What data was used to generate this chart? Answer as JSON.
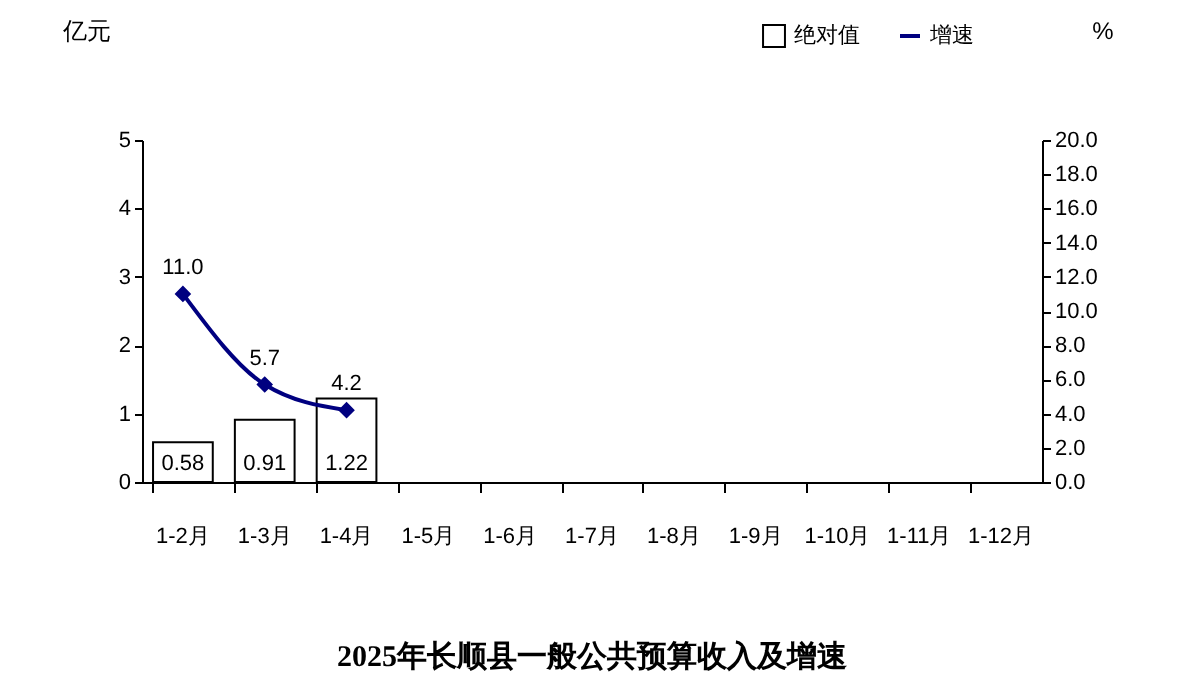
{
  "chart_data": {
    "type": "bar",
    "title": "2025年长顺县一般公共预算收入及增速",
    "categories": [
      "1-2月",
      "1-3月",
      "1-4月",
      "1-5月",
      "1-6月",
      "1-7月",
      "1-8月",
      "1-9月",
      "1-10月",
      "1-11月",
      "1-12月"
    ],
    "series": [
      {
        "name": "绝对值",
        "color": "#ffffff",
        "values": [
          0.58,
          0.91,
          1.22,
          null,
          null,
          null,
          null,
          null,
          null,
          null,
          null
        ]
      },
      {
        "name": "增速",
        "type": "line",
        "axis": "y2",
        "color": "#000080",
        "marker": "diamond",
        "line_style": "solid",
        "values": [
          11.0,
          5.7,
          4.2,
          null,
          null,
          null,
          null,
          null,
          null,
          null,
          null
        ],
        "value_labels": [
          "11.0",
          "5.7",
          "4.2",
          null,
          null,
          null,
          null,
          null,
          null,
          null,
          null
        ]
      }
    ],
    "ylabel": "亿元",
    "y2label": "%",
    "ylim": [
      0,
      5
    ],
    "yticks": [
      0,
      1,
      2,
      3,
      4,
      5
    ],
    "y2lim": [
      0,
      20
    ],
    "y2ticks": [
      {
        "value": 0,
        "label": "0.0"
      },
      {
        "value": 2,
        "label": "2.0"
      },
      {
        "value": 4,
        "label": "4.0"
      },
      {
        "value": 6,
        "label": "6.0"
      },
      {
        "value": 8,
        "label": "8.0"
      },
      {
        "value": 10,
        "label": "10.0"
      },
      {
        "value": 12,
        "label": "12.0"
      },
      {
        "value": 14,
        "label": "14.0"
      },
      {
        "value": 16,
        "label": "16.0"
      },
      {
        "value": 18,
        "label": "18.0"
      },
      {
        "value": 20,
        "label": "20.0"
      }
    ],
    "data_labels": true,
    "legend": "top right"
  }
}
